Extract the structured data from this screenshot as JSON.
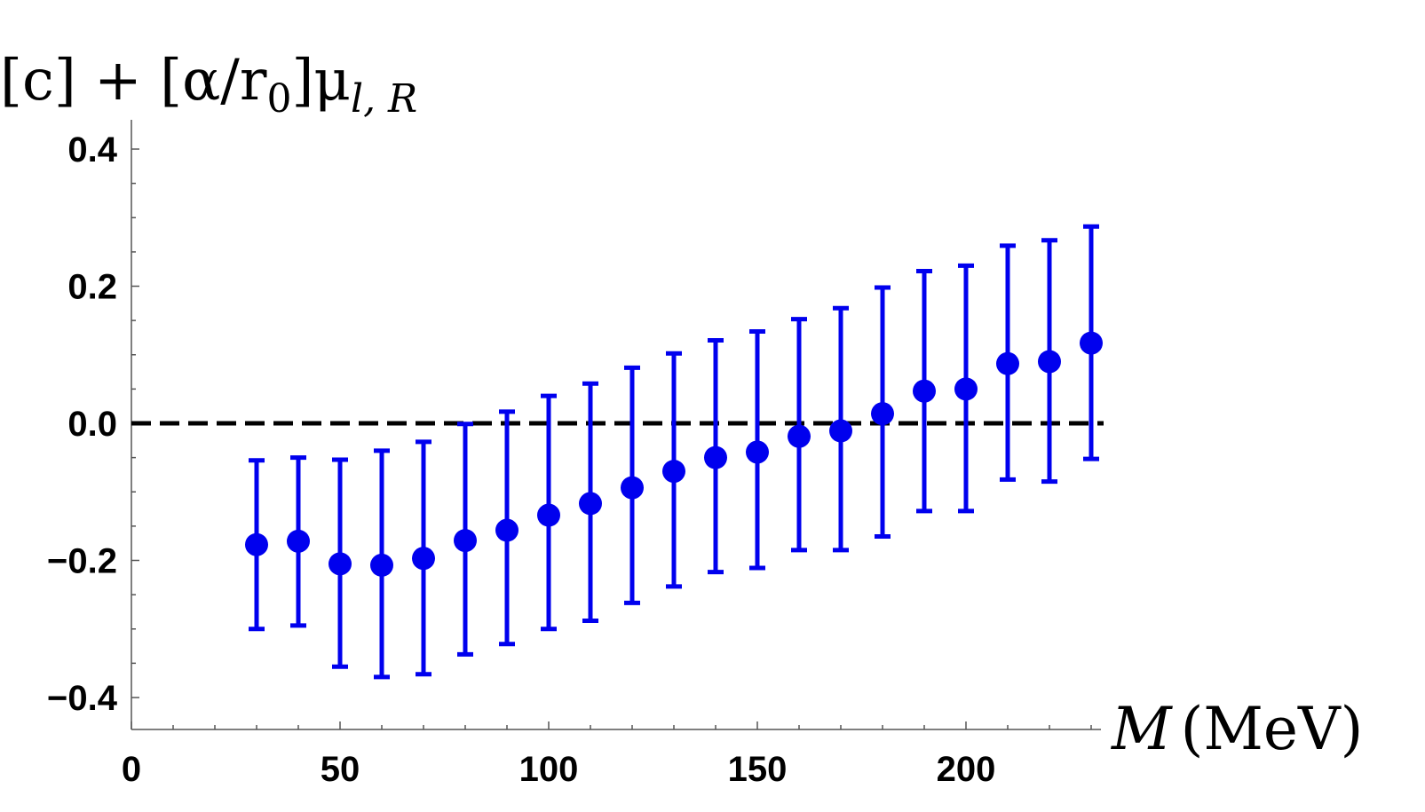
{
  "chart_data": {
    "type": "scatter",
    "title": "",
    "ylabel": "[c] + [α/r₀]μ",
    "ylabel_parts": {
      "main": "[c] + [α/r",
      "sub0": "0",
      "mid": "]μ",
      "sub": "l, R"
    },
    "xlabel": "M (MeV)",
    "xlabel_parts": {
      "var": "M",
      "unit": "(MeV)"
    },
    "xlim": [
      0,
      235
    ],
    "ylim": [
      -0.445,
      0.44
    ],
    "xticks": [
      0,
      50,
      100,
      150,
      200
    ],
    "xtick_labels": [
      "0",
      "50",
      "100",
      "150",
      "200"
    ],
    "yticks": [
      0.4,
      0.2,
      0.0,
      -0.2,
      -0.4
    ],
    "ytick_labels": [
      "0.4",
      "0.2",
      "0.0",
      "−0.2",
      "−0.4"
    ],
    "reference_line": {
      "y": 0.0,
      "style": "dashed",
      "color": "#000000"
    },
    "grid": false,
    "series": [
      {
        "color": "#0000ee",
        "x": [
          30,
          40,
          50,
          60,
          70,
          80,
          90,
          100,
          110,
          120,
          130,
          140,
          150,
          160,
          170,
          180,
          190,
          200,
          210,
          220,
          230
        ],
        "y": [
          -0.177,
          -0.172,
          -0.205,
          -0.207,
          -0.197,
          -0.171,
          -0.156,
          -0.134,
          -0.117,
          -0.094,
          -0.07,
          -0.05,
          -0.042,
          -0.019,
          -0.011,
          0.014,
          0.047,
          0.05,
          0.087,
          0.09,
          0.117
        ],
        "y_low": [
          -0.3,
          -0.295,
          -0.355,
          -0.37,
          -0.366,
          -0.337,
          -0.322,
          -0.3,
          -0.288,
          -0.262,
          -0.238,
          -0.217,
          -0.211,
          -0.185,
          -0.185,
          -0.165,
          -0.128,
          -0.128,
          -0.082,
          -0.085,
          -0.052
        ],
        "y_high": [
          -0.054,
          -0.05,
          -0.053,
          -0.04,
          -0.027,
          -0.001,
          0.017,
          0.04,
          0.058,
          0.081,
          0.102,
          0.121,
          0.134,
          0.152,
          0.168,
          0.198,
          0.222,
          0.23,
          0.259,
          0.267,
          0.287
        ]
      }
    ]
  }
}
